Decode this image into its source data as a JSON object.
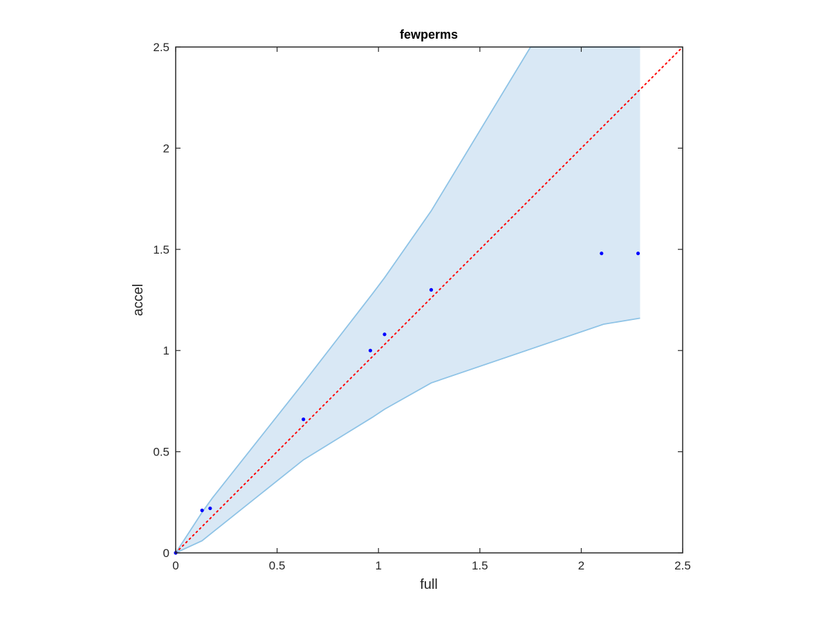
{
  "chart_data": {
    "type": "scatter",
    "title": "fewperms",
    "xlabel": "full",
    "ylabel": "accel",
    "xlim": [
      0,
      2.5
    ],
    "ylim": [
      0,
      2.5
    ],
    "xticks": [
      0,
      0.5,
      1,
      1.5,
      2,
      2.5
    ],
    "yticks": [
      0,
      0.5,
      1,
      1.5,
      2,
      2.5
    ],
    "xtick_labels": [
      "0",
      "0.5",
      "1",
      "1.5",
      "2",
      "2.5"
    ],
    "ytick_labels": [
      "0",
      "0.5",
      "1",
      "1.5",
      "2",
      "2.5"
    ],
    "grid": false,
    "band": {
      "upper": {
        "x": [
          0,
          0.13,
          0.18,
          0.63,
          0.97,
          1.03,
          1.26,
          1.75,
          2.29
        ],
        "y": [
          0,
          0.2,
          0.27,
          0.84,
          1.28,
          1.36,
          1.69,
          2.5,
          2.5
        ]
      },
      "lower": {
        "x": [
          0,
          0.13,
          0.18,
          0.63,
          0.97,
          1.03,
          1.26,
          2.11,
          2.29
        ],
        "y": [
          0,
          0.06,
          0.1,
          0.46,
          0.67,
          0.71,
          0.84,
          1.13,
          1.16
        ]
      },
      "fill_color": "#d9e8f5",
      "line_color": "#8ec3e6"
    },
    "points": {
      "x": [
        0,
        0.13,
        0.17,
        0.63,
        0.96,
        1.03,
        1.26,
        2.1,
        2.28
      ],
      "y": [
        0,
        0.21,
        0.22,
        0.66,
        1.0,
        1.08,
        1.3,
        1.48,
        1.48
      ],
      "color": "#0000ff"
    },
    "reference_line": {
      "x": [
        0,
        2.5
      ],
      "y": [
        0,
        2.5
      ],
      "color": "#ff0000",
      "style": "dotted"
    }
  }
}
